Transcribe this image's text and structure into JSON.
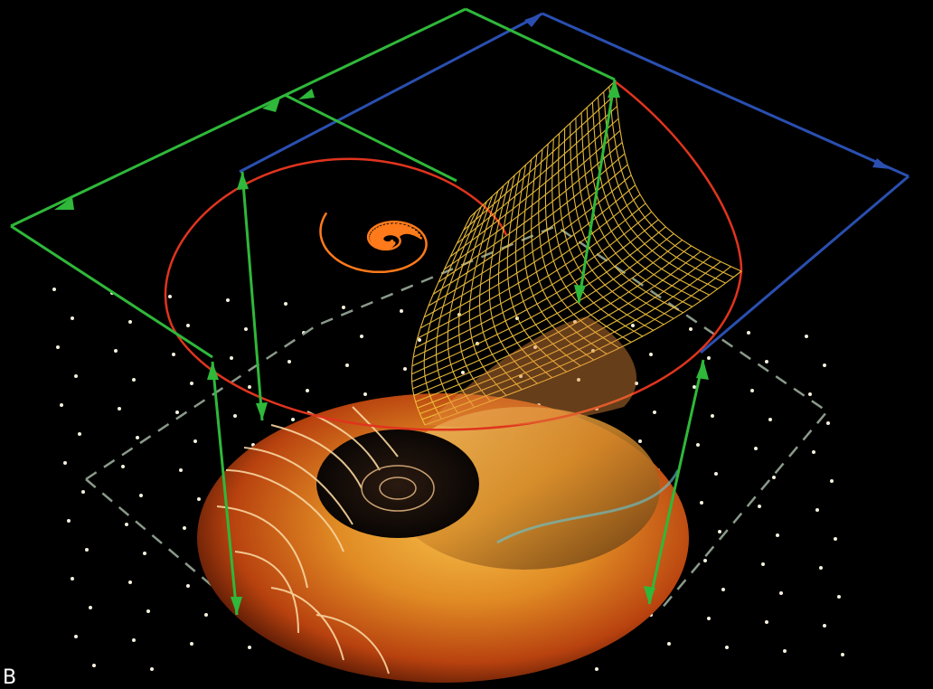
{
  "image": {
    "corner_letter": "B",
    "colors": {
      "background": "#000000",
      "wireframe_red": "#e0341e",
      "wireframe_orange": "#ff7a1a",
      "wireframe_yellow": "#f2c23a",
      "dimension_green": "#2fb83a",
      "dimension_blue": "#2a4fb0",
      "guide_dashes": "#8a9a8a",
      "dots": "#f4f0dc",
      "shell_orange": "#d5561a",
      "shell_gold": "#e8a22a"
    }
  }
}
